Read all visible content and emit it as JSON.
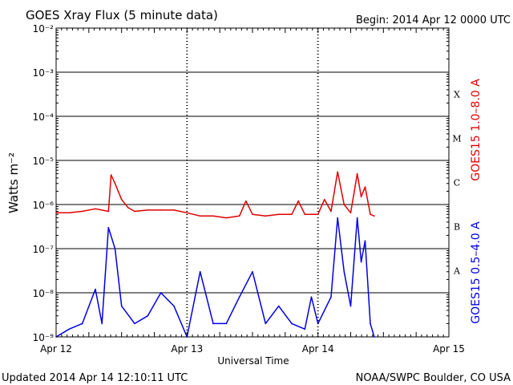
{
  "title": "GOES Xray Flux (5 minute data)",
  "begin": "Begin:  2014 Apr 12 0000 UTC",
  "updated": "Updated 2014 Apr 14 12:10:11 UTC",
  "credit": "NOAA/SWPC Boulder, CO USA",
  "colors": {
    "long_channel": "#e00000",
    "short_channel": "#0000e6",
    "grid": "#000000"
  },
  "chart_data": {
    "type": "line",
    "title": "GOES Xray Flux (5 minute data)",
    "xlabel": "Universal Time",
    "ylabel": "Watts m⁻²",
    "y_scale": "log",
    "xlim": [
      "2014-04-12",
      "2014-04-15"
    ],
    "ylim": [
      1e-09,
      0.01
    ],
    "grid": true,
    "x_ticks": [
      "Apr 12",
      "Apr 13",
      "Apr 14",
      "Apr 15"
    ],
    "y_ticks": [
      "10⁻⁹",
      "10⁻⁸",
      "10⁻⁷",
      "10⁻⁶",
      "10⁻⁵",
      "10⁻⁴",
      "10⁻³",
      "10⁻²"
    ],
    "flare_classes": [
      "A",
      "B",
      "C",
      "M",
      "X"
    ],
    "series": [
      {
        "name": "GOES15 1.0–8.0 A",
        "x": [
          0.0,
          0.1,
          0.2,
          0.3,
          0.4,
          0.42,
          0.45,
          0.5,
          0.55,
          0.6,
          0.7,
          0.8,
          0.9,
          1.0,
          1.1,
          1.2,
          1.3,
          1.4,
          1.45,
          1.5,
          1.6,
          1.7,
          1.8,
          1.85,
          1.9,
          1.95,
          2.0,
          2.05,
          2.1,
          2.15,
          2.2,
          2.25,
          2.3,
          2.33,
          2.36,
          2.4,
          2.43
        ],
        "y": [
          6.5e-07,
          6.5e-07,
          7e-07,
          8e-07,
          7e-07,
          4.7e-06,
          3e-06,
          1.3e-06,
          8.5e-07,
          7e-07,
          7.5e-07,
          7.5e-07,
          7.5e-07,
          6.5e-07,
          5.5e-07,
          5.5e-07,
          5e-07,
          5.5e-07,
          1.2e-06,
          6e-07,
          5.5e-07,
          6e-07,
          6e-07,
          1.2e-06,
          6e-07,
          6e-07,
          6e-07,
          1.3e-06,
          7e-07,
          5.5e-06,
          1e-06,
          6.5e-07,
          5e-06,
          1.5e-06,
          2.5e-06,
          6e-07,
          5.5e-07
        ]
      },
      {
        "name": "GOES15 0.5–4.0 A",
        "x": [
          0.0,
          0.1,
          0.2,
          0.3,
          0.35,
          0.4,
          0.45,
          0.5,
          0.6,
          0.7,
          0.8,
          0.9,
          1.0,
          1.1,
          1.2,
          1.3,
          1.4,
          1.5,
          1.6,
          1.7,
          1.8,
          1.9,
          1.95,
          2.0,
          2.1,
          2.15,
          2.2,
          2.25,
          2.3,
          2.33,
          2.36,
          2.4,
          2.43
        ],
        "y": [
          1e-09,
          1.5e-09,
          2e-09,
          1.2e-08,
          2e-09,
          3e-07,
          1e-07,
          5e-09,
          2e-09,
          3e-09,
          1e-08,
          5e-09,
          1e-09,
          3e-08,
          2e-09,
          2e-09,
          8e-09,
          3e-08,
          2e-09,
          5e-09,
          2e-09,
          1.5e-09,
          8e-09,
          2e-09,
          8e-09,
          5e-07,
          3e-08,
          5e-09,
          5e-07,
          5e-08,
          1.5e-07,
          2e-09,
          1e-09
        ]
      }
    ]
  }
}
